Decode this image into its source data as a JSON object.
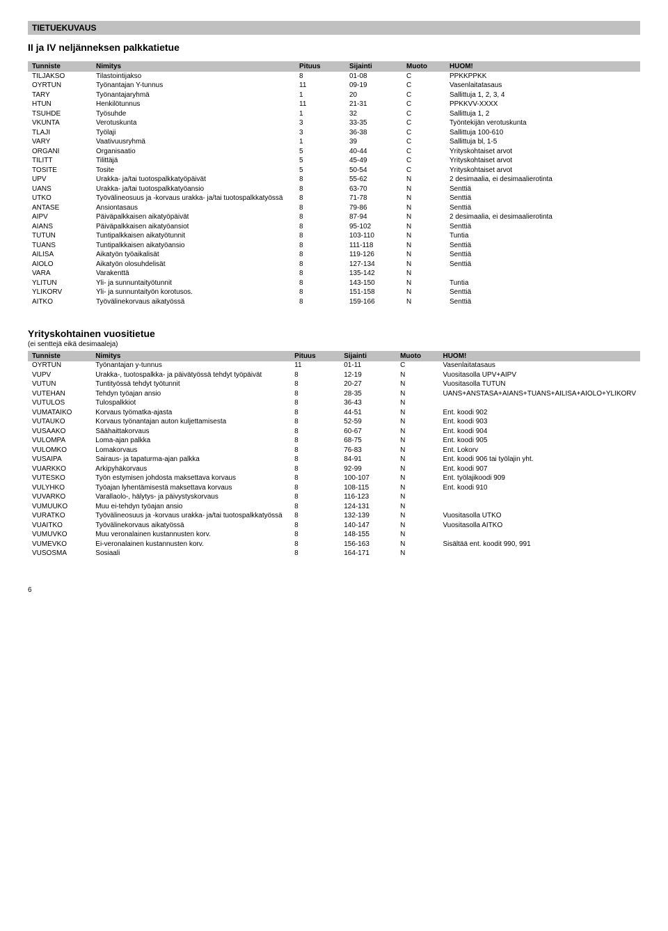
{
  "header_bar": "TIETUEKUVAUS",
  "section1_title": "II ja IV neljänneksen palkkatietue",
  "section2_title": "Yrityskohtainen vuositietue",
  "section2_sub": "(ei senttejä eikä desimaaleja)",
  "cols": {
    "tunniste": "Tunniste",
    "nimitys": "Nimitys",
    "pituus": "Pituus",
    "sijainti": "Sijainti",
    "muoto": "Muoto",
    "huom": "HUOM!"
  },
  "t1": [
    [
      "TILJAKSO",
      "Tilastointijakso",
      "8",
      "01-08",
      "C",
      "PPKKPPKK"
    ],
    [
      "OYRTUN",
      "Työnantajan Y-tunnus",
      "11",
      "09-19",
      "C",
      "Vasenlaitatasaus"
    ],
    [
      "TARY",
      "Työnantajaryhmä",
      "1",
      "20",
      "C",
      "Sallittuja 1, 2, 3, 4"
    ],
    [
      "HTUN",
      "Henkilötunnus",
      "11",
      "21-31",
      "C",
      "PPKKVV-XXXX"
    ],
    [
      "TSUHDE",
      "Työsuhde",
      "1",
      "32",
      "C",
      "Sallittuja 1, 2"
    ],
    [
      "VKUNTA",
      "Verotuskunta",
      "3",
      "33-35",
      "C",
      "Työntekijän verotuskunta"
    ],
    [
      "TLAJI",
      "Työlaji",
      "3",
      "36-38",
      "C",
      "Sallittuja 100-610"
    ],
    [
      "VARY",
      "Vaativuusryhmä",
      "1",
      "39",
      "C",
      "Sallittuja bl, 1-5"
    ],
    [
      "ORGANI",
      "Organisaatio",
      "5",
      "40-44",
      "C",
      "Yrityskohtaiset arvot"
    ],
    [
      "TILITT",
      "Tilittäjä",
      "5",
      "45-49",
      "C",
      "Yrityskohtaiset arvot"
    ],
    [
      "TOSITE",
      "Tosite",
      "5",
      "50-54",
      "C",
      "Yrityskohtaiset arvot"
    ],
    [
      "UPV",
      "Urakka- ja/tai tuotospalkkatyöpäivät",
      "8",
      "55-62",
      "N",
      "2 desimaalia, ei desimaalierotinta"
    ],
    [
      "UANS",
      "Urakka- ja/tai tuotospalkkatyöansio",
      "8",
      "63-70",
      "N",
      "Senttiä"
    ],
    [
      "UTKO",
      "Työvälineosuus ja -korvaus urakka- ja/tai tuotospalkkatyössä",
      "8",
      "71-78",
      "N",
      "Senttiä"
    ],
    [
      "ANTASE",
      "Ansiontasaus",
      "8",
      "79-86",
      "N",
      "Senttiä"
    ],
    [
      "AIPV",
      "Päiväpalkkaisen aikatyöpäivät",
      "8",
      "87-94",
      "N",
      "2 desimaalia, ei desimaalierotinta"
    ],
    [
      "AIANS",
      "Päiväpalkkaisen aikatyöansiot",
      "8",
      "95-102",
      "N",
      "Senttiä"
    ],
    [
      "TUTUN",
      "Tuntipalkkaisen aikatyötunnit",
      "8",
      "103-110",
      "N",
      "Tuntia"
    ],
    [
      "TUANS",
      "Tuntipalkkaisen aikatyöansio",
      "8",
      "111-118",
      "N",
      "Senttiä"
    ],
    [
      "AILISA",
      "Aikatyön työaikalisät",
      "8",
      "119-126",
      "N",
      "Senttiä"
    ],
    [
      "AIOLO",
      "Aikatyön olosuhdelisät",
      "8",
      "127-134",
      "N",
      "Senttiä"
    ],
    [
      "VARA",
      "Varakenttä",
      "8",
      "135-142",
      "N",
      ""
    ],
    [
      "YLITUN",
      "Yli- ja sunnuntaityötunnit",
      "8",
      "143-150",
      "N",
      "Tuntia"
    ],
    [
      "YLIKORV",
      "Yli- ja sunnuntaityön korotusos.",
      "8",
      "151-158",
      "N",
      "Senttiä"
    ],
    [
      "AITKO",
      "Työvälinekorvaus aikatyössä",
      "8",
      "159-166",
      "N",
      "Senttiä"
    ]
  ],
  "t2": [
    [
      "OYRTUN",
      "Työnantajan y-tunnus",
      "11",
      "01-11",
      "C",
      "Vasenlaitatasaus"
    ],
    [
      "VUPV",
      "Urakka-, tuotospalkka- ja päivätyössä tehdyt työpäivät",
      "8",
      "12-19",
      "N",
      "Vuositasolla UPV+AIPV"
    ],
    [
      "VUTUN",
      "Tuntityössä tehdyt työtunnit",
      "8",
      "20-27",
      "N",
      "Vuositasolla TUTUN"
    ],
    [
      "VUTEHAN",
      "Tehdyn työajan ansio",
      "8",
      "28-35",
      "N",
      "UANS+ANSTASA+AIANS+TUANS+AILISA+AIOLO+YLIKORV"
    ],
    [
      "VUTULOS",
      "Tulospalkkiot",
      "8",
      "36-43",
      "N",
      ""
    ],
    [
      "VUMATAIKO",
      "Korvaus työmatka-ajasta",
      "8",
      "44-51",
      "N",
      "Ent. koodi 902"
    ],
    [
      "VUTAUKO",
      "Korvaus työnantajan auton kuljettamisesta",
      "8",
      "52-59",
      "N",
      "Ent. koodi 903"
    ],
    [
      "VUSAAKO",
      "Säähaittakorvaus",
      "8",
      "60-67",
      "N",
      "Ent. koodi 904"
    ],
    [
      "VULOMPA",
      "Loma-ajan palkka",
      "8",
      "68-75",
      "N",
      "Ent. koodi 905"
    ],
    [
      "VULOMKO",
      "Lomakorvaus",
      "8",
      "76-83",
      "N",
      "Ent. Lokorv"
    ],
    [
      "VUSAIPA",
      "Sairaus- ja tapaturma-ajan palkka",
      "8",
      "84-91",
      "N",
      "Ent. koodi 906 tai työlajin yht."
    ],
    [
      "VUARKKO",
      "Arkipyhäkorvaus",
      "8",
      "92-99",
      "N",
      "Ent. koodi 907"
    ],
    [
      "VUTESKO",
      "Työn estymisen johdosta maksettava korvaus",
      "8",
      "100-107",
      "N",
      "Ent. työlajikoodi 909"
    ],
    [
      "VULYHKO",
      "Työajan lyhentämisestä maksettava korvaus",
      "8",
      "108-115",
      "N",
      "Ent. koodi 910"
    ],
    [
      "VUVARKO",
      "Varallaolo-, hälytys- ja päivystyskorvaus",
      "8",
      "116-123",
      "N",
      ""
    ],
    [
      "VUMUUKO",
      "Muu ei-tehdyn työajan ansio",
      "8",
      "124-131",
      "N",
      ""
    ],
    [
      "VURATKO",
      "Työvälineosuus ja -korvaus urakka- ja/tai tuotospalkkatyössä",
      "8",
      "132-139",
      "N",
      "Vuositasolla UTKO"
    ],
    [
      "VUAITKO",
      "Työvälinekorvaus aikatyössä",
      "8",
      "140-147",
      "N",
      "Vuositasolla AITKO"
    ],
    [
      "VUMUVKO",
      "Muu veronalainen kustannusten korv.",
      "8",
      "148-155",
      "N",
      ""
    ],
    [
      "VUMEVKO",
      "Ei-veronalainen kustannusten korv.",
      "8",
      "156-163",
      "N",
      "Sisältää ent. koodit 990, 991"
    ],
    [
      "VUSOSMA",
      "Sosiaali",
      "8",
      "164-171",
      "N",
      ""
    ]
  ],
  "pagenum": "6"
}
